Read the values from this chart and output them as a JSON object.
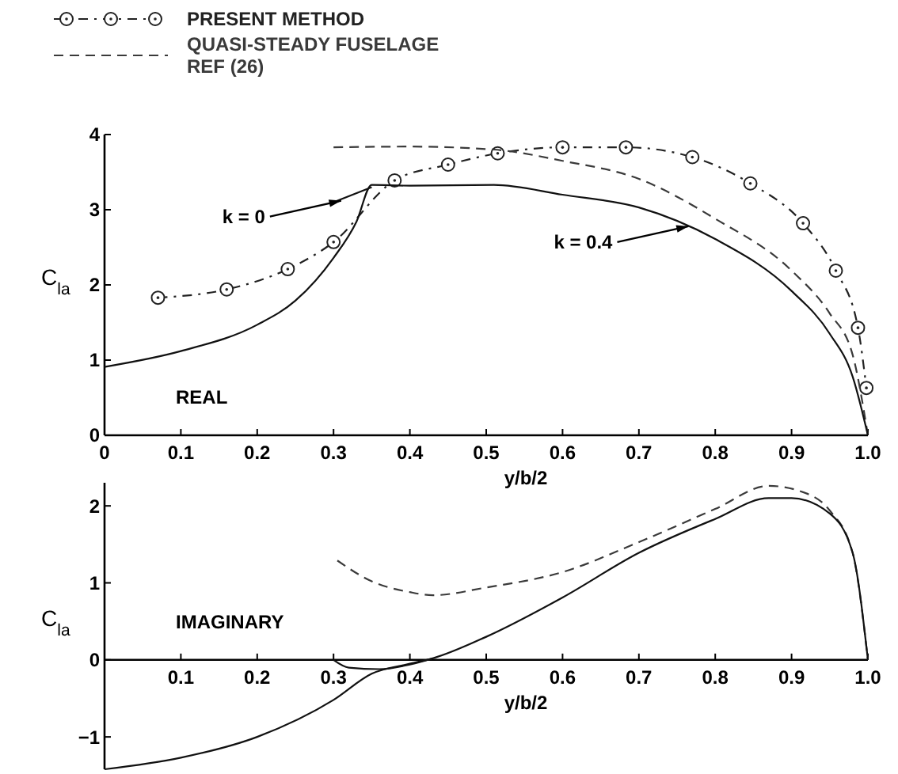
{
  "chart_data": [
    {
      "type": "line",
      "xlabel": "y/b/2",
      "ylabel": "C$_{la}$",
      "xlim": [
        0,
        1
      ],
      "ylim": [
        0,
        4
      ],
      "xticks": [
        0,
        0.1,
        0.2,
        0.3,
        0.4,
        0.5,
        0.6,
        0.7,
        0.8,
        0.9,
        {
          "value": 1,
          "label": "1.0"
        }
      ],
      "yticks": [
        0,
        1,
        2,
        3,
        4
      ],
      "legend": "top left",
      "grid": false,
      "annotations": [
        "REAL",
        {
          "text": "k = 0",
          "x": 0.31,
          "y": 3.12
        },
        {
          "text": "k = 0.4",
          "x": 0.765,
          "y": 2.78
        }
      ],
      "series": [
        {
          "name": "PRESENT METHOD",
          "color": "#222222",
          "marker": "circle",
          "line_style": "dotted",
          "x": [
            0.07,
            0.16,
            0.24,
            0.3,
            0.38,
            0.45,
            0.515,
            0.6,
            0.683,
            0.77,
            0.846,
            0.915,
            0.958,
            0.987,
            0.998
          ],
          "values": [
            1.83,
            1.94,
            2.21,
            2.57,
            3.39,
            3.6,
            3.75,
            3.83,
            3.83,
            3.7,
            3.35,
            2.82,
            2.19,
            1.43,
            0.63
          ]
        },
        {
          "name": "QUASI-STEADY FUSELAGE REF (26)",
          "color": "#3a3a3a",
          "line_style": "dashed",
          "x": [
            0.3,
            0.4,
            0.51,
            0.6,
            0.7,
            0.8,
            0.9,
            0.95,
            0.98,
            1
          ],
          "values": [
            3.83,
            3.84,
            3.8,
            3.65,
            3.41,
            2.88,
            2.19,
            1.62,
            1.07,
            0
          ]
        },
        {
          "color": "#111111",
          "line_style": "solid",
          "x": [
            0,
            0.1,
            0.2,
            0.25,
            0.3,
            0.33,
            0.35,
            0.4,
            0.51,
            0.6,
            0.7,
            0.8,
            0.9,
            0.95,
            0.98,
            1
          ],
          "values": [
            0.91,
            1.12,
            1.47,
            1.79,
            2.36,
            2.84,
            3.33,
            3.32,
            3.33,
            3.2,
            3.03,
            2.61,
            1.92,
            1.35,
            0.78,
            0
          ]
        },
        {
          "color": "#111111",
          "line_style": "solid",
          "x": [
            0.3,
            0.35
          ],
          "values": [
            3.1,
            3.3
          ]
        }
      ]
    },
    {
      "type": "line",
      "xlabel": "y/b/2",
      "ylabel": "C$_{la}$",
      "xlim": [
        0,
        1
      ],
      "ylim": [
        -1.42,
        2.3
      ],
      "xticks": [
        0.1,
        0.2,
        0.3,
        0.4,
        0.5,
        0.6,
        0.7,
        0.8,
        0.9,
        {
          "value": 1,
          "label": "1.0"
        }
      ],
      "yticks": [
        -1,
        0,
        1,
        2
      ],
      "grid": false,
      "annotations": [
        "IMAGINARY"
      ],
      "series": [
        {
          "color": "#3a3a3a",
          "line_style": "dashed",
          "x": [
            0.305,
            0.35,
            0.4,
            0.43,
            0.5,
            0.6,
            0.7,
            0.8,
            0.87,
            0.92,
            0.95,
            0.98,
            1
          ],
          "values": [
            1.29,
            1.02,
            0.88,
            0.84,
            0.94,
            1.14,
            1.53,
            1.96,
            2.26,
            2.16,
            1.94,
            1.39,
            0
          ]
        },
        {
          "color": "#111111",
          "line_style": "solid",
          "x": [
            0,
            0.1,
            0.2,
            0.3,
            0.35,
            0.4,
            0.43,
            0.5,
            0.6,
            0.7,
            0.8,
            0.87,
            0.9,
            0.95,
            0.98,
            1
          ],
          "values": [
            -1.42,
            -1.27,
            -1,
            -0.52,
            -0.18,
            -0.05,
            0.02,
            0.3,
            0.81,
            1.39,
            1.83,
            2.1,
            2.1,
            1.9,
            1.39,
            0
          ]
        },
        {
          "color": "#111111",
          "line_style": "solid",
          "x": [
            0.3,
            0.32,
            0.36,
            0.4,
            0.43
          ],
          "values": [
            0,
            -0.1,
            -0.12,
            -0.06,
            0.02
          ]
        }
      ]
    }
  ]
}
